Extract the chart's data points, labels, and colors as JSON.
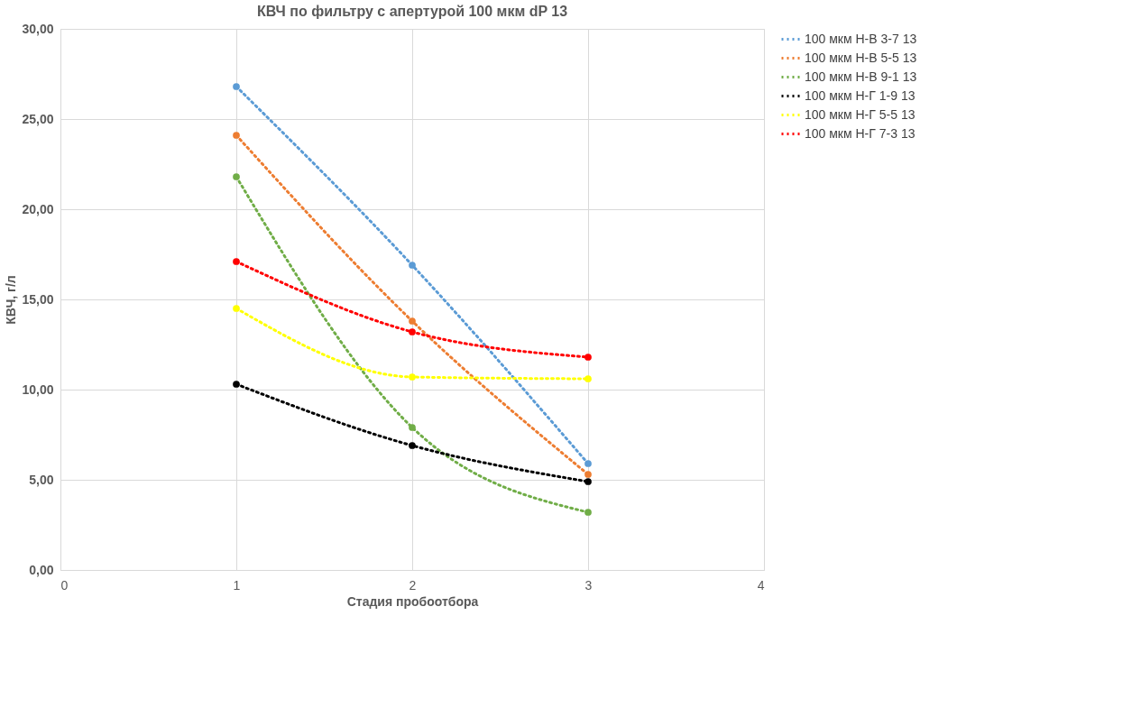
{
  "chart_data": {
    "type": "line",
    "title": "КВЧ по фильтру с апертурой 100 мкм dP 13",
    "xlabel": "Стадия пробоотбора",
    "ylabel": "КВЧ, г/л",
    "x": [
      1,
      2,
      3
    ],
    "series": [
      {
        "name": "100 мкм Н-В 3-7 13",
        "color": "#5b9bd5",
        "values": [
          26.8,
          16.9,
          5.9
        ]
      },
      {
        "name": "100 мкм Н-В 5-5 13",
        "color": "#ed7d31",
        "values": [
          24.1,
          13.8,
          5.3
        ]
      },
      {
        "name": "100 мкм Н-В 9-1 13",
        "color": "#70ad47",
        "values": [
          21.8,
          7.9,
          3.2
        ]
      },
      {
        "name": "100 мкм Н-Г 1-9 13",
        "color": "#000000",
        "values": [
          10.3,
          6.9,
          4.9
        ]
      },
      {
        "name": "100 мкм Н-Г 5-5 13",
        "color": "#ffff00",
        "values": [
          14.5,
          10.7,
          10.6
        ]
      },
      {
        "name": "100 мкм Н-Г 7-3 13",
        "color": "#ff0000",
        "values": [
          17.1,
          13.2,
          11.8
        ]
      }
    ],
    "xlim": [
      0,
      4
    ],
    "xticks": [
      0,
      1,
      2,
      3,
      4
    ],
    "ylim": [
      0,
      30
    ],
    "yticks": [
      {
        "value": 0,
        "label": "0,00"
      },
      {
        "value": 5,
        "label": "5,00"
      },
      {
        "value": 10,
        "label": "10,00"
      },
      {
        "value": 15,
        "label": "15,00"
      },
      {
        "value": 20,
        "label": "20,00"
      },
      {
        "value": 25,
        "label": "25,00"
      },
      {
        "value": 30,
        "label": "30,00"
      }
    ],
    "grid": true,
    "legend": "right",
    "marker": "circle",
    "line_style": "dotted"
  }
}
